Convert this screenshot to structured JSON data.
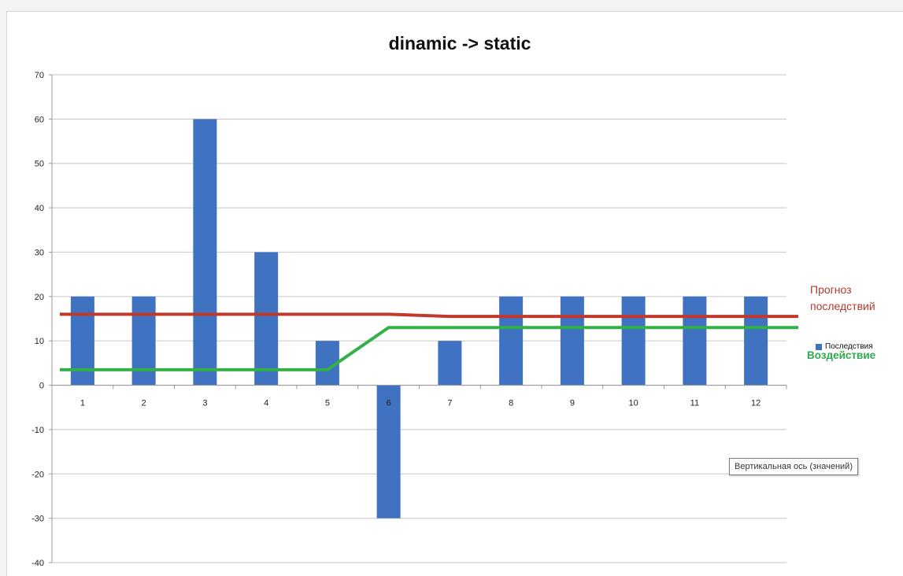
{
  "chart_data": {
    "type": "bar",
    "title": "dinamic -> static",
    "categories": [
      "1",
      "2",
      "3",
      "4",
      "5",
      "6",
      "7",
      "8",
      "9",
      "10",
      "11",
      "12"
    ],
    "series": [
      {
        "name": "Последствия",
        "type": "bar",
        "values": [
          20,
          20,
          60,
          30,
          10,
          -30,
          10,
          20,
          20,
          20,
          20,
          20
        ],
        "color": "#3f72c0"
      }
    ],
    "lines": [
      {
        "label": "Прогноз последствий",
        "color": "#c0392b",
        "values": [
          16,
          16,
          16,
          16,
          16,
          16,
          15.5,
          15.5,
          15.5,
          15.5,
          15.5,
          15.5
        ]
      },
      {
        "label": "Воздействие",
        "color": "#34b048",
        "values": [
          3.5,
          3.5,
          3.5,
          3.5,
          3.5,
          13,
          13,
          13,
          13,
          13,
          13,
          13
        ]
      }
    ],
    "yticks": [
      "70",
      "60",
      "50",
      "40",
      "30",
      "20",
      "10",
      "0",
      "-10",
      "-20",
      "-30",
      "-40"
    ],
    "ylim": [
      -40,
      70
    ],
    "grid": true,
    "legend_position": "right"
  },
  "tooltip": "Вертикальная ось (значений)"
}
